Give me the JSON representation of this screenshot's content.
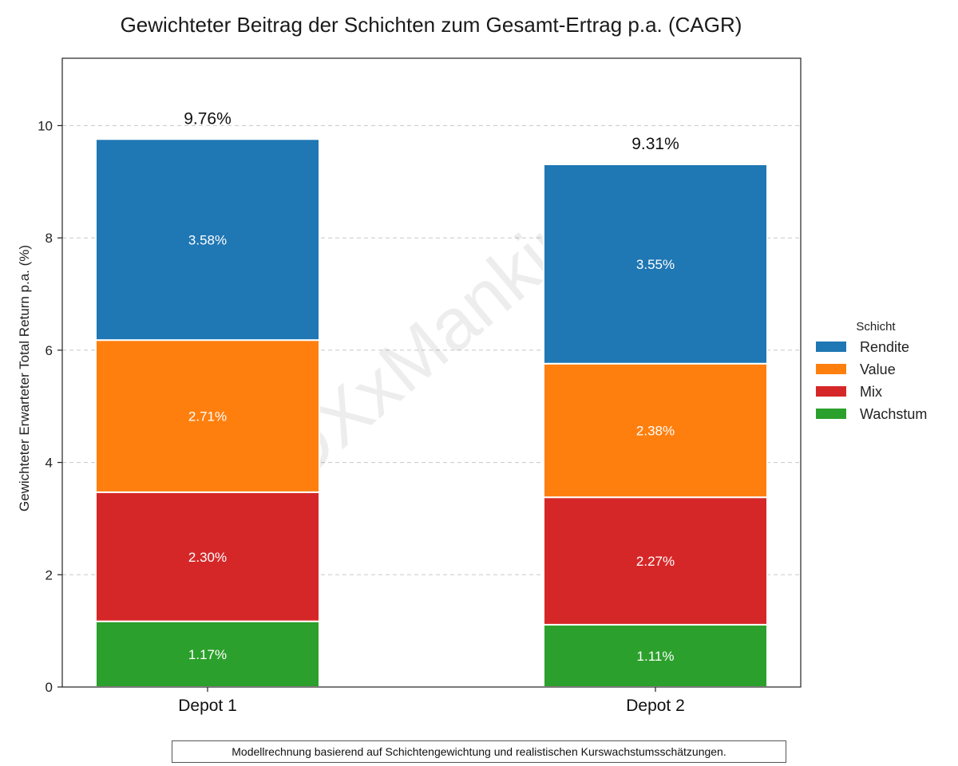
{
  "chart_data": {
    "type": "bar",
    "stacked": true,
    "title": "Gewichteter Beitrag der Schichten zum Gesamt-Ertrag p.a. (CAGR)",
    "xlabel": "",
    "ylabel": "Gewichteter Erwarteter Total Return p.a. (%)",
    "ylim": [
      0,
      11.2
    ],
    "yticks": [
      0,
      2,
      4,
      6,
      8,
      10
    ],
    "grid": "y-dashed",
    "categories": [
      "Depot 1",
      "Depot 2"
    ],
    "series": [
      {
        "name": "Wachstum",
        "color": "#2ca02c",
        "values": [
          1.17,
          1.11
        ],
        "labels": [
          "1.17%",
          "1.11%"
        ]
      },
      {
        "name": "Mix",
        "color": "#d62728",
        "values": [
          2.3,
          2.27
        ],
        "labels": [
          "2.30%",
          "2.27%"
        ]
      },
      {
        "name": "Value",
        "color": "#ff7f0e",
        "values": [
          2.71,
          2.38
        ],
        "labels": [
          "2.71%",
          "2.38%"
        ]
      },
      {
        "name": "Rendite",
        "color": "#1f77b4",
        "values": [
          3.58,
          3.55
        ],
        "labels": [
          "3.58%",
          "3.55%"
        ]
      }
    ],
    "totals": [
      9.76,
      9.31
    ],
    "total_labels": [
      "9.76%",
      "9.31%"
    ],
    "legend": {
      "title": "Schicht",
      "placement": "right-outside",
      "order": [
        "Rendite",
        "Value",
        "Mix",
        "Wachstum"
      ]
    },
    "watermark": "@DXxMankind"
  },
  "footnote": "Modellrechnung basierend auf Schichtengewichtung und realistischen Kurswachstumsschätzungen."
}
